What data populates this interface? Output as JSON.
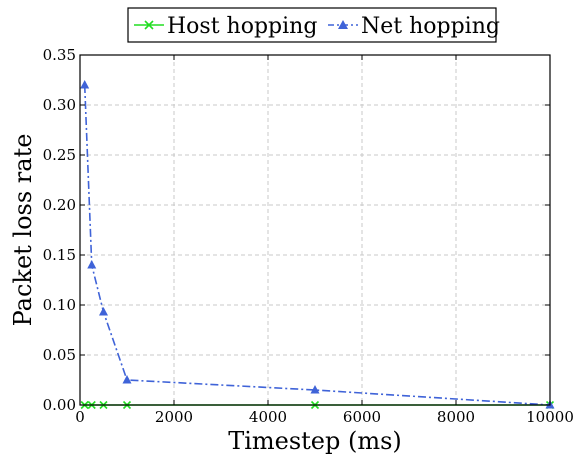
{
  "chart_data": {
    "type": "line",
    "xlabel": "Timestep (ms)",
    "ylabel": "Packet loss rate",
    "xlim": [
      0,
      10000
    ],
    "ylim": [
      0,
      0.35
    ],
    "x_ticks": [
      0,
      2000,
      4000,
      6000,
      8000,
      10000
    ],
    "x_tick_labels": [
      "0",
      "2000",
      "4000",
      "6000",
      "8000",
      "10000"
    ],
    "y_ticks": [
      0.0,
      0.05,
      0.1,
      0.15,
      0.2,
      0.25,
      0.3,
      0.35
    ],
    "y_tick_labels": [
      "0.00",
      "0.05",
      "0.10",
      "0.15",
      "0.20",
      "0.25",
      "0.30",
      "0.35"
    ],
    "grid": true,
    "legend_position": "top-center",
    "series": [
      {
        "name": "Host hopping",
        "color": "#22dd22",
        "marker": "x",
        "line_style": "solid",
        "x": [
          100,
          250,
          500,
          1000,
          5000,
          10000
        ],
        "y": [
          0.0,
          0.0,
          0.0,
          0.0,
          0.0,
          0.0
        ]
      },
      {
        "name": "Net hopping",
        "color": "#3f63d8",
        "marker": "triangle",
        "line_style": "dash-dot",
        "x": [
          100,
          250,
          500,
          1000,
          5000,
          10000
        ],
        "y": [
          0.32,
          0.14,
          0.093,
          0.025,
          0.015,
          0.0
        ]
      }
    ]
  }
}
